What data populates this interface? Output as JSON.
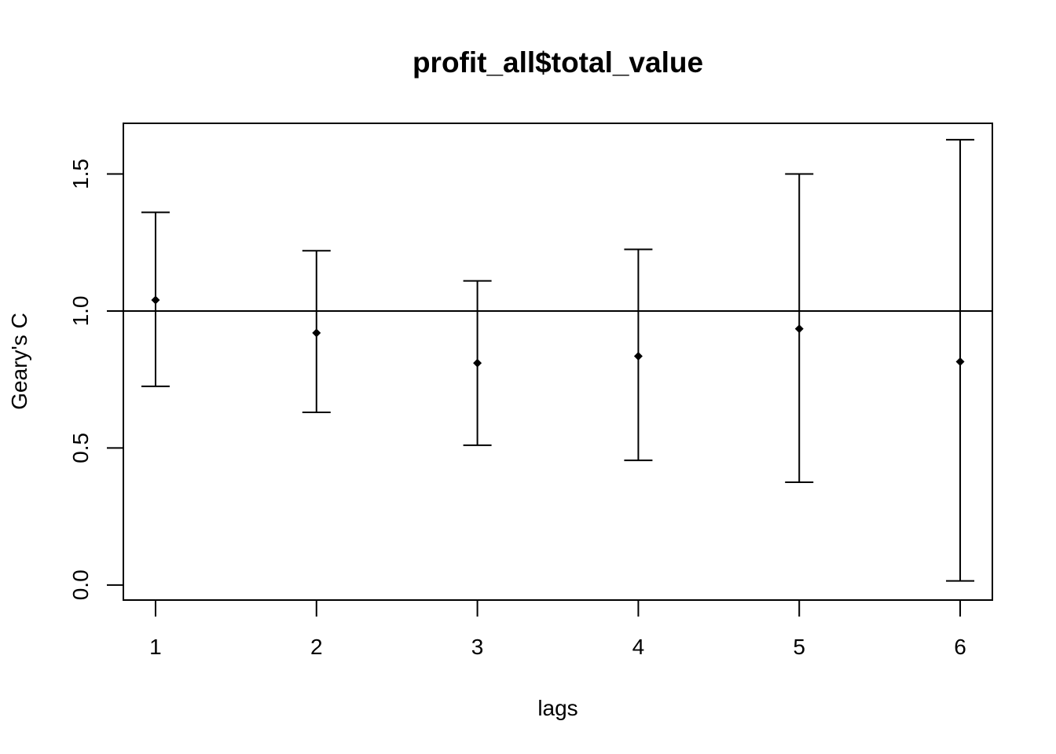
{
  "chart_data": {
    "type": "scatter",
    "title": "profit_all$total_value",
    "xlabel": "lags",
    "ylabel": "Geary's  C",
    "x": [
      1,
      2,
      3,
      4,
      5,
      6
    ],
    "x_ticks": [
      "1",
      "2",
      "3",
      "4",
      "5",
      "6"
    ],
    "y_ticks": [
      "0.0",
      "0.5",
      "1.0",
      "1.5"
    ],
    "xlim": [
      0.8,
      6.2
    ],
    "ylim": [
      -0.055,
      1.685
    ],
    "reference_line": 1.0,
    "series": [
      {
        "estimate": [
          1.04,
          0.92,
          0.81,
          0.835,
          0.935,
          0.815
        ],
        "lower": [
          0.725,
          0.63,
          0.51,
          0.455,
          0.375,
          0.015
        ],
        "upper": [
          1.36,
          1.22,
          1.11,
          1.225,
          1.5,
          1.625
        ]
      }
    ],
    "grid": false,
    "legend": "none",
    "colors": {
      "foreground": "#000000",
      "background": "#ffffff"
    }
  }
}
